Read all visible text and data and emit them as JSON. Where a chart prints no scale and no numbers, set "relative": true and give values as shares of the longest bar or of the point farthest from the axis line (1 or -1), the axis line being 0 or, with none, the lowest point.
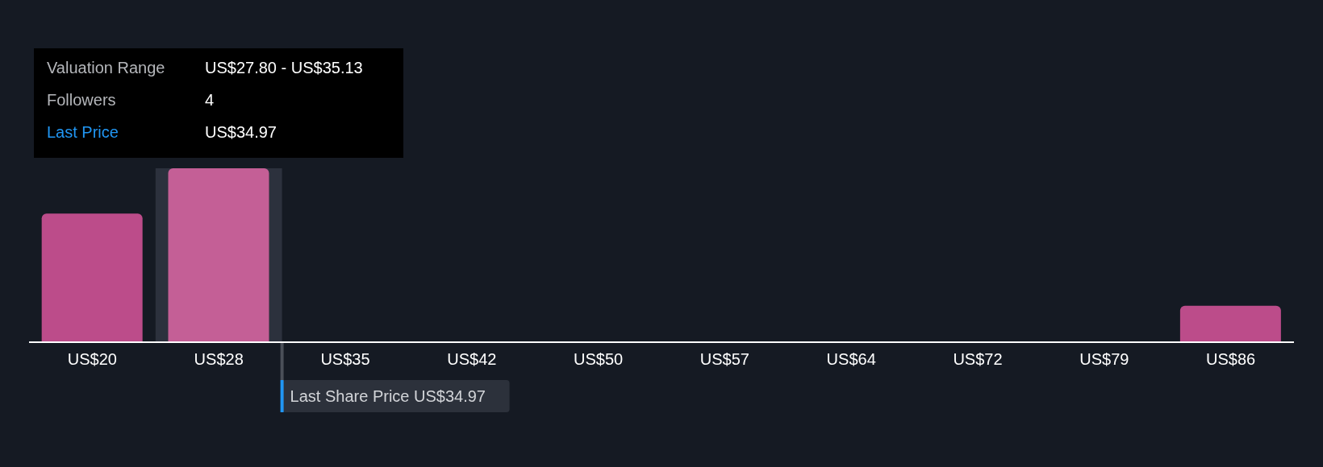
{
  "chart_data": {
    "type": "bar",
    "relative": true,
    "categories": [
      "US$20",
      "US$28",
      "US$35",
      "US$42",
      "US$50",
      "US$57",
      "US$64",
      "US$72",
      "US$79",
      "US$86"
    ],
    "values": [
      0.74,
      1,
      0,
      0,
      0,
      0,
      0,
      0,
      0,
      0.21
    ],
    "colors": [
      "#bc4c8a",
      "#c45f96",
      "#bc4c8a",
      "#bc4c8a",
      "#bc4c8a",
      "#bc4c8a",
      "#bc4c8a",
      "#bc4c8a",
      "#bc4c8a",
      "#bc4c8a"
    ],
    "tick_labels": "x",
    "ref_lines": [
      {
        "axis": "x",
        "value": "US$28",
        "label": "Last Share Price US$34.97",
        "color": "#2196f3"
      }
    ],
    "bands": [
      {
        "axis": "x",
        "from": "US$28",
        "to": "US$28",
        "color": "#2c313d"
      }
    ],
    "annotations": [
      "Valuation Range",
      "US$27.80 - US$35.13",
      "Followers",
      "4",
      "Last Price",
      "US$34.97"
    ]
  }
}
